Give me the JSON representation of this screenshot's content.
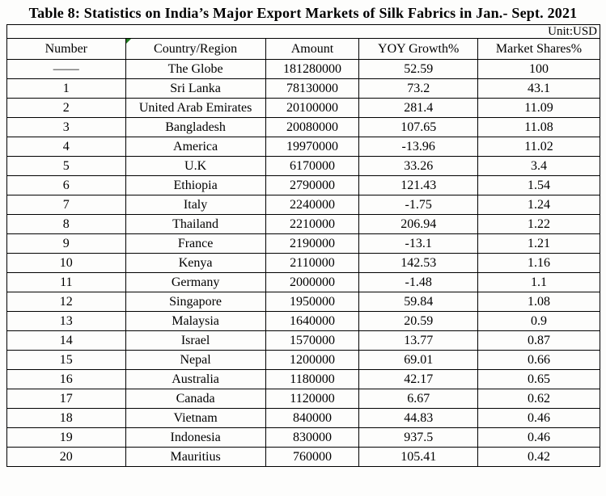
{
  "title": "Table 8: Statistics on India’s Major Export Markets of Silk Fabrics in Jan.- Sept. 2021",
  "unit_label": "Unit:USD",
  "colors": {
    "corner_marker": "#1e7a1e",
    "border": "#000000",
    "text": "#000000",
    "background": "#fdfdfc"
  },
  "table": {
    "columns": [
      "Number",
      "Country/Region",
      "Amount",
      "YOY Growth%",
      "Market Shares%"
    ],
    "column_widths_pct": [
      20.0,
      23.6,
      15.8,
      20.0,
      20.6
    ],
    "rows": [
      [
        "——",
        "The Globe",
        "181280000",
        "52.59",
        "100"
      ],
      [
        "1",
        "Sri Lanka",
        "78130000",
        "73.2",
        "43.1"
      ],
      [
        "2",
        "United Arab Emirates",
        "20100000",
        "281.4",
        "11.09"
      ],
      [
        "3",
        "Bangladesh",
        "20080000",
        "107.65",
        "11.08"
      ],
      [
        "4",
        "America",
        "19970000",
        "-13.96",
        "11.02"
      ],
      [
        "5",
        "U.K",
        "6170000",
        "33.26",
        "3.4"
      ],
      [
        "6",
        "Ethiopia",
        "2790000",
        "121.43",
        "1.54"
      ],
      [
        "7",
        "Italy",
        "2240000",
        "-1.75",
        "1.24"
      ],
      [
        "8",
        "Thailand",
        "2210000",
        "206.94",
        "1.22"
      ],
      [
        "9",
        "France",
        "2190000",
        "-13.1",
        "1.21"
      ],
      [
        "10",
        "Kenya",
        "2110000",
        "142.53",
        "1.16"
      ],
      [
        "11",
        "Germany",
        "2000000",
        "-1.48",
        "1.1"
      ],
      [
        "12",
        "Singapore",
        "1950000",
        "59.84",
        "1.08"
      ],
      [
        "13",
        "Malaysia",
        "1640000",
        "20.59",
        "0.9"
      ],
      [
        "14",
        "Israel",
        "1570000",
        "13.77",
        "0.87"
      ],
      [
        "15",
        "Nepal",
        "1200000",
        "69.01",
        "0.66"
      ],
      [
        "16",
        "Australia",
        "1180000",
        "42.17",
        "0.65"
      ],
      [
        "17",
        "Canada",
        "1120000",
        "6.67",
        "0.62"
      ],
      [
        "18",
        "Vietnam",
        "840000",
        "44.83",
        "0.46"
      ],
      [
        "19",
        "Indonesia",
        "830000",
        "937.5",
        "0.46"
      ],
      [
        "20",
        "Mauritius",
        "760000",
        "105.41",
        "0.42"
      ]
    ]
  }
}
